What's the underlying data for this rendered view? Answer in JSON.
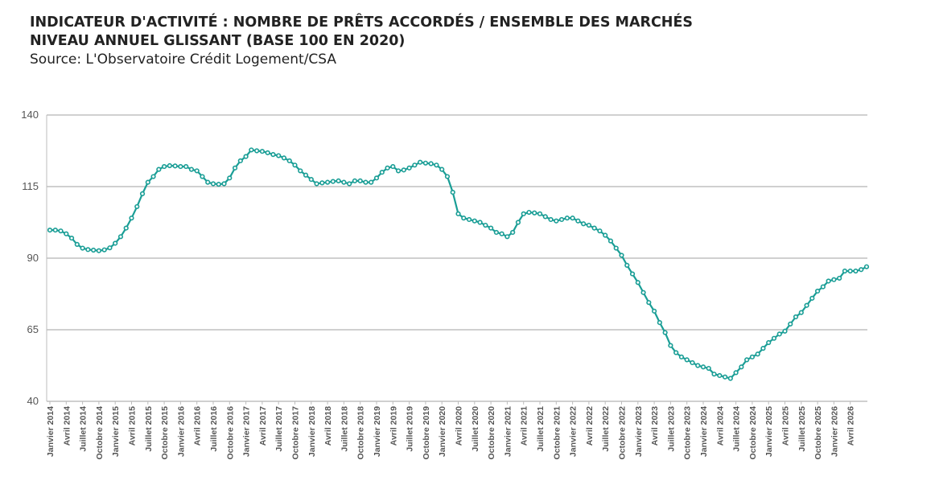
{
  "header": {
    "title_line1": "INDICATEUR D'ACTIVITÉ : NOMBRE DE PRÊTS ACCORDÉS / ENSEMBLE DES MARCHÉS",
    "title_line2": "NIVEAU ANNUEL GLISSANT (BASE 100 EN 2020)",
    "source": "Source: L'Observatoire Crédit Logement/CSA"
  },
  "colors": {
    "line": "#1a9e96",
    "marker_fill": "#ffffff",
    "grid": "#a0a0a0",
    "axis_text": "#555555"
  },
  "chart_data": {
    "type": "line",
    "title": "INDICATEUR D'ACTIVITÉ : NOMBRE DE PRÊTS ACCORDÉS / ENSEMBLE DES MARCHÉS",
    "subtitle": "NIVEAU ANNUEL GLISSANT (BASE 100 EN 2020)",
    "xlabel": "",
    "ylabel": "",
    "ylim": [
      40,
      140
    ],
    "yticks": [
      40,
      65,
      90,
      115,
      140
    ],
    "grid": true,
    "legend": "none",
    "x_start": "Janvier 2014",
    "x_end": "Avril 2026",
    "x_frequency": "monthly",
    "x_tick_labels": [
      "Janvier 2014",
      "Avril 2014",
      "Juillet 2014",
      "Octobre 2014",
      "Janvier 2015",
      "Avril 2015",
      "Juillet 2015",
      "Octobre 2015",
      "Janvier 2016",
      "Avril 2016",
      "Juillet 2016",
      "Octobre 2016",
      "Janvier 2017",
      "Avril 2017",
      "Juillet 2017",
      "Octobre 2017",
      "Janvier 2018",
      "Avril 2018",
      "Juillet 2018",
      "Octobre 2018",
      "Janvier 2019",
      "Avril 2019",
      "Juillet 2019",
      "Octobre 2019",
      "Janvier 2020",
      "Avril 2020",
      "Juillet 2020",
      "Octobre 2020",
      "Janvier 2021",
      "Avril 2021",
      "Juillet 2021",
      "Octobre 2021",
      "Janvier 2022",
      "Avril 2022",
      "Juillet 2022",
      "Octobre 2022",
      "Janvier 2023",
      "Avril 2023",
      "Juillet 2023",
      "Octobre 2023",
      "Janvier 2024",
      "Avril 2024",
      "Juillet 2024",
      "Octobre 2024",
      "Janvier 2025",
      "Avril 2025",
      "Juillet 2025",
      "Octobre 2025",
      "Janvier 2026",
      "Avril 2026"
    ],
    "values": [
      99.8,
      99.8,
      99.5,
      98.5,
      97.0,
      94.8,
      93.5,
      93.0,
      92.8,
      92.6,
      92.9,
      93.6,
      95.2,
      97.5,
      100.5,
      104.0,
      108.0,
      112.5,
      116.5,
      118.5,
      121.0,
      122.0,
      122.3,
      122.2,
      122.0,
      122.0,
      121.0,
      120.5,
      118.5,
      116.5,
      116.0,
      115.8,
      116.0,
      118.0,
      121.5,
      124.0,
      125.5,
      127.8,
      127.5,
      127.3,
      126.8,
      126.2,
      125.8,
      125.0,
      124.0,
      122.5,
      120.5,
      119.0,
      117.5,
      116.0,
      116.3,
      116.5,
      116.8,
      117.0,
      116.5,
      116.0,
      117.0,
      117.0,
      116.5,
      116.5,
      118.0,
      120.0,
      121.5,
      122.0,
      120.5,
      120.8,
      121.5,
      122.5,
      123.5,
      123.2,
      123.0,
      122.5,
      121.0,
      118.5,
      113.0,
      105.5,
      104.0,
      103.5,
      103.0,
      102.5,
      101.5,
      100.5,
      99.0,
      98.5,
      97.5,
      99.0,
      102.5,
      105.5,
      106.0,
      105.8,
      105.5,
      104.5,
      103.5,
      103.0,
      103.5,
      104.0,
      104.0,
      103.0,
      102.0,
      101.5,
      100.5,
      99.5,
      98.0,
      96.0,
      93.5,
      91.0,
      87.5,
      84.5,
      81.5,
      78.0,
      74.5,
      71.5,
      67.5,
      64.0,
      59.5,
      57.0,
      55.5,
      54.5,
      53.5,
      52.5,
      52.0,
      51.5,
      49.5,
      49.0,
      48.5,
      48.0,
      50.0,
      52.0,
      54.5,
      55.5,
      56.5,
      58.5,
      60.5,
      62.0,
      63.5,
      64.5,
      67.0,
      69.5,
      71.0,
      73.5,
      76.0,
      78.5,
      80.0,
      82.0,
      82.5,
      83.0,
      85.5,
      85.5,
      85.5,
      86.0,
      87.0
    ]
  }
}
